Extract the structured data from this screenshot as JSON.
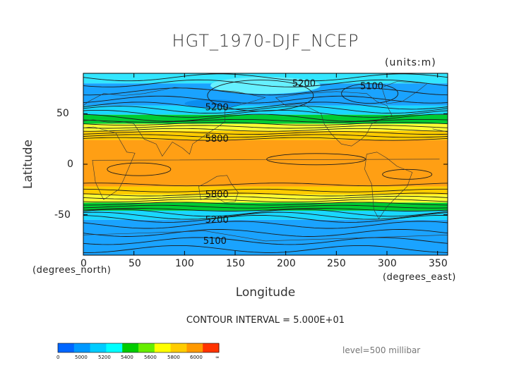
{
  "title": "HGT_1970-DJF_NCEP",
  "units_label": "(units:m)",
  "y_axis": {
    "label": "Latitude",
    "ticks": [
      "50",
      "0",
      "-50"
    ],
    "unit": "(degrees_north)"
  },
  "x_axis": {
    "label": "Longitude",
    "ticks": [
      "0",
      "50",
      "100",
      "150",
      "200",
      "250",
      "300",
      "350"
    ],
    "unit": "(degrees_east)"
  },
  "contour_interval": "CONTOUR INTERVAL = 5.000E+01",
  "level_text": "level=500 millibar",
  "contour_labels": [
    "5200",
    "5100",
    "5200",
    "5800",
    "5800",
    "5200",
    "5100"
  ],
  "colorbar": {
    "colors": [
      "#0066ff",
      "#0099ff",
      "#00ccff",
      "#00ffff",
      "#00cc00",
      "#66ee00",
      "#ffff00",
      "#ffcc00",
      "#ff9900",
      "#ff3300"
    ],
    "tick_labels": [
      "0",
      "5000",
      "5200",
      "5400",
      "5600",
      "5800",
      "6000",
      "∞"
    ]
  },
  "map": {
    "lon_range": [
      0,
      360
    ],
    "lat_range": [
      -90,
      90
    ],
    "bands_north_to_south": [
      {
        "lat_top": 90,
        "lat_bottom": 80,
        "color": "#33e6ff"
      },
      {
        "lat_top": 80,
        "lat_bottom": 58,
        "color": "#1aa3ff"
      },
      {
        "lat_top": 58,
        "lat_bottom": 49,
        "color": "#19d7ff"
      },
      {
        "lat_top": 49,
        "lat_bottom": 40,
        "color": "#00cc33"
      },
      {
        "lat_top": 40,
        "lat_bottom": 33,
        "color": "#ffff33"
      },
      {
        "lat_top": 33,
        "lat_bottom": 24,
        "color": "#ffcc00"
      },
      {
        "lat_top": 24,
        "lat_bottom": -22,
        "color": "#ff9f14"
      },
      {
        "lat_top": -22,
        "lat_bottom": -30,
        "color": "#ffcc00"
      },
      {
        "lat_top": -30,
        "lat_bottom": -38,
        "color": "#ffff33"
      },
      {
        "lat_top": -38,
        "lat_bottom": -46,
        "color": "#00cc33"
      },
      {
        "lat_top": -46,
        "lat_bottom": -55,
        "color": "#19d7ff"
      },
      {
        "lat_top": -55,
        "lat_bottom": -90,
        "color": "#1aa3ff"
      }
    ]
  }
}
